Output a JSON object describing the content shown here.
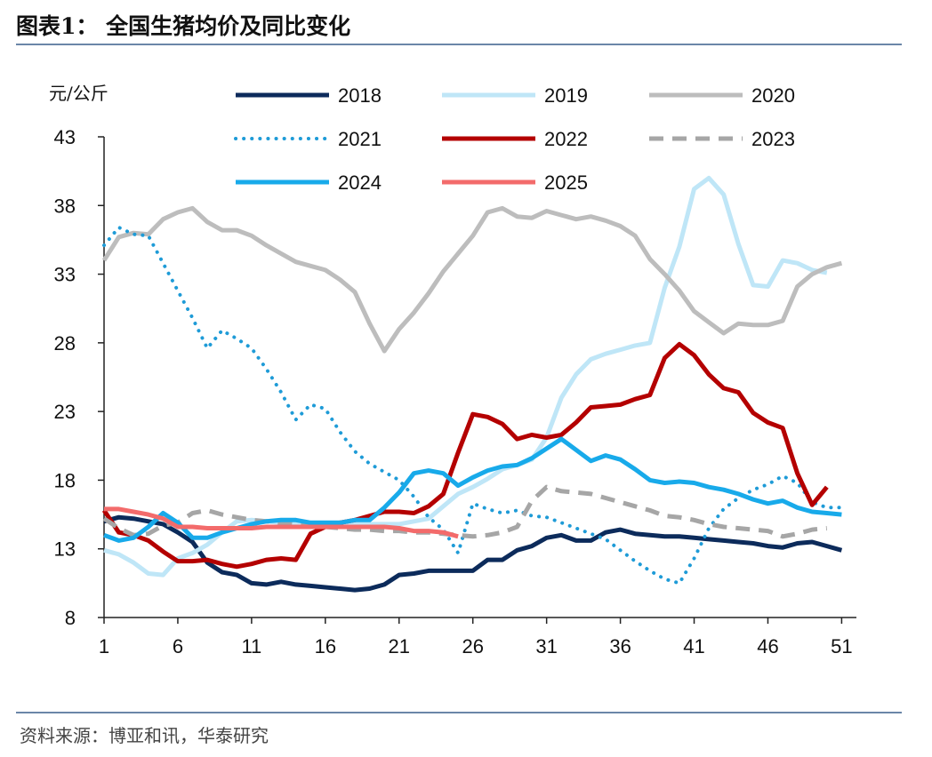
{
  "header": {
    "title": "图表1： 全国生猪均价及同比变化",
    "source": "资料来源：博亚和讯，华泰研究"
  },
  "chart_data": {
    "type": "line",
    "ylabel": "元/公斤",
    "ylim": [
      8,
      43
    ],
    "yticks": [
      8,
      13,
      18,
      23,
      28,
      33,
      38,
      43
    ],
    "xlim": [
      1,
      52
    ],
    "xticks": [
      1,
      6,
      11,
      16,
      21,
      26,
      31,
      36,
      41,
      46,
      51
    ],
    "legend": "top",
    "series": [
      {
        "name": "2018",
        "color": "#0c2b5b",
        "style": "solid",
        "width": 5,
        "x": [
          1,
          2,
          3,
          4,
          5,
          6,
          7,
          8,
          9,
          10,
          11,
          12,
          13,
          14,
          15,
          16,
          17,
          18,
          19,
          20,
          21,
          22,
          23,
          24,
          25,
          26,
          27,
          28,
          29,
          30,
          31,
          32,
          33,
          34,
          35,
          36,
          37,
          38,
          39,
          40,
          41,
          42,
          43,
          44,
          45,
          46,
          47,
          48,
          49,
          50,
          51
        ],
        "y": [
          15.0,
          15.3,
          15.2,
          15.0,
          14.8,
          14.2,
          13.5,
          12.0,
          11.3,
          11.1,
          10.5,
          10.4,
          10.6,
          10.4,
          10.3,
          10.2,
          10.1,
          10.0,
          10.1,
          10.4,
          11.1,
          11.2,
          11.4,
          11.4,
          11.4,
          11.4,
          12.2,
          12.2,
          12.9,
          13.2,
          13.8,
          14.0,
          13.6,
          13.6,
          14.2,
          14.4,
          14.1,
          14.0,
          13.9,
          13.9,
          13.8,
          13.7,
          13.6,
          13.5,
          13.4,
          13.2,
          13.1,
          13.4,
          13.5,
          13.2,
          12.9
        ]
      },
      {
        "name": "2019",
        "color": "#bfe6f7",
        "style": "solid",
        "width": 5,
        "x": [
          1,
          2,
          3,
          4,
          5,
          6,
          7,
          8,
          9,
          10,
          11,
          12,
          13,
          14,
          15,
          16,
          17,
          18,
          19,
          20,
          21,
          22,
          23,
          24,
          25,
          26,
          27,
          28,
          29,
          30,
          31,
          32,
          33,
          34,
          35,
          36,
          37,
          38,
          39,
          40,
          41,
          42,
          43,
          44,
          45,
          46,
          47,
          48,
          49,
          50
        ],
        "y": [
          12.9,
          12.6,
          12.0,
          11.2,
          11.1,
          12.3,
          12.7,
          13.3,
          14.2,
          15.0,
          15.1,
          15.0,
          14.9,
          14.8,
          14.8,
          14.8,
          14.8,
          14.8,
          14.8,
          14.8,
          14.8,
          15.0,
          15.2,
          16.1,
          17.0,
          17.5,
          18.1,
          18.8,
          19.1,
          19.5,
          21.1,
          24.0,
          25.7,
          26.8,
          27.2,
          27.5,
          27.8,
          28.0,
          32.0,
          35.0,
          39.2,
          40.0,
          38.8,
          35.2,
          32.2,
          32.1,
          34.0,
          33.8,
          33.3,
          33.1
        ]
      },
      {
        "name": "2020",
        "color": "#bdbdbd",
        "style": "solid",
        "width": 5,
        "x": [
          1,
          2,
          3,
          4,
          5,
          6,
          7,
          8,
          9,
          10,
          11,
          12,
          13,
          14,
          15,
          16,
          17,
          18,
          19,
          20,
          21,
          22,
          23,
          24,
          25,
          26,
          27,
          28,
          29,
          30,
          31,
          32,
          33,
          34,
          35,
          36,
          37,
          38,
          39,
          40,
          41,
          42,
          43,
          44,
          45,
          46,
          47,
          48,
          49,
          50,
          51
        ],
        "y": [
          34.0,
          35.7,
          36.0,
          35.9,
          37.0,
          37.5,
          37.8,
          36.8,
          36.2,
          36.2,
          35.8,
          35.1,
          34.5,
          33.9,
          33.6,
          33.3,
          32.6,
          31.7,
          29.4,
          27.4,
          29.0,
          30.2,
          31.6,
          33.2,
          34.5,
          35.8,
          37.5,
          37.8,
          37.2,
          37.1,
          37.6,
          37.3,
          37.0,
          37.2,
          36.9,
          36.5,
          35.8,
          34.1,
          33.0,
          31.8,
          30.3,
          29.5,
          28.7,
          29.4,
          29.3,
          29.3,
          29.6,
          32.1,
          33.0,
          33.5,
          33.8
        ]
      },
      {
        "name": "2021",
        "color": "#1e9bd7",
        "style": "dotted",
        "width": 4,
        "x": [
          1,
          2,
          3,
          4,
          5,
          6,
          7,
          8,
          9,
          10,
          11,
          12,
          13,
          14,
          15,
          16,
          17,
          18,
          19,
          20,
          21,
          22,
          23,
          24,
          25,
          26,
          27,
          28,
          29,
          30,
          31,
          32,
          33,
          34,
          35,
          36,
          37,
          38,
          39,
          40,
          41,
          42,
          43,
          44,
          45,
          46,
          47,
          48,
          49,
          50,
          51
        ],
        "y": [
          35.1,
          36.4,
          35.9,
          35.8,
          33.8,
          31.8,
          29.8,
          27.6,
          28.9,
          28.3,
          27.6,
          26.1,
          24.4,
          22.4,
          23.5,
          23.2,
          21.5,
          20.1,
          19.2,
          18.6,
          18.0,
          16.8,
          15.3,
          14.4,
          12.7,
          16.3,
          15.9,
          15.6,
          15.8,
          15.4,
          15.3,
          14.9,
          14.5,
          14.1,
          13.7,
          12.9,
          12.1,
          11.4,
          10.8,
          10.5,
          12.3,
          14.5,
          15.9,
          16.7,
          17.3,
          17.7,
          18.3,
          17.8,
          16.4,
          16.0,
          16.0
        ]
      },
      {
        "name": "2022",
        "color": "#b40000",
        "style": "solid",
        "width": 5,
        "x": [
          1,
          2,
          3,
          4,
          5,
          6,
          7,
          8,
          9,
          10,
          11,
          12,
          13,
          14,
          15,
          16,
          17,
          18,
          19,
          20,
          21,
          22,
          23,
          24,
          25,
          26,
          27,
          28,
          29,
          30,
          31,
          32,
          33,
          34,
          35,
          36,
          37,
          38,
          39,
          40,
          41,
          42,
          43,
          44,
          45,
          46,
          47,
          48,
          49,
          50
        ],
        "y": [
          15.8,
          14.2,
          14.0,
          13.6,
          12.8,
          12.1,
          12.1,
          12.2,
          11.9,
          11.7,
          11.9,
          12.2,
          12.3,
          12.2,
          14.1,
          14.6,
          14.9,
          15.1,
          15.4,
          15.7,
          15.7,
          15.6,
          16.1,
          17.0,
          20.0,
          22.8,
          22.6,
          22.1,
          21.0,
          21.3,
          21.1,
          21.3,
          22.2,
          23.3,
          23.4,
          23.5,
          23.9,
          24.2,
          26.9,
          27.9,
          27.1,
          25.7,
          24.7,
          24.4,
          22.9,
          22.2,
          21.8,
          18.5,
          16.2,
          17.5
        ]
      },
      {
        "name": "2023",
        "color": "#a6a6a6",
        "style": "dashed",
        "width": 5,
        "x": [
          1,
          2,
          3,
          4,
          5,
          6,
          7,
          8,
          9,
          10,
          11,
          12,
          13,
          14,
          15,
          16,
          17,
          18,
          19,
          20,
          21,
          22,
          23,
          24,
          25,
          26,
          27,
          28,
          29,
          30,
          31,
          32,
          33,
          34,
          35,
          36,
          37,
          38,
          39,
          40,
          41,
          42,
          43,
          44,
          45,
          46,
          47,
          48,
          49,
          50
        ],
        "y": [
          15.2,
          14.5,
          14.0,
          14.1,
          14.7,
          14.9,
          15.6,
          15.8,
          15.5,
          15.3,
          15.1,
          15.0,
          14.9,
          14.8,
          14.7,
          14.6,
          14.5,
          14.4,
          14.4,
          14.3,
          14.3,
          14.2,
          14.2,
          14.1,
          14.0,
          13.9,
          14.0,
          14.2,
          14.6,
          16.5,
          17.5,
          17.2,
          17.1,
          17.0,
          16.7,
          16.4,
          16.1,
          15.8,
          15.4,
          15.3,
          15.1,
          14.8,
          14.6,
          14.5,
          14.4,
          14.3,
          13.9,
          14.1,
          14.4,
          14.5
        ]
      },
      {
        "name": "2024",
        "color": "#18aaea",
        "style": "solid",
        "width": 5,
        "x": [
          1,
          2,
          3,
          4,
          5,
          6,
          7,
          8,
          9,
          10,
          11,
          12,
          13,
          14,
          15,
          16,
          17,
          18,
          19,
          20,
          21,
          22,
          23,
          24,
          25,
          26,
          27,
          28,
          29,
          30,
          31,
          32,
          33,
          34,
          35,
          36,
          37,
          38,
          39,
          40,
          41,
          42,
          43,
          44,
          45,
          46,
          47,
          48,
          49,
          50,
          51
        ],
        "y": [
          14.0,
          13.6,
          13.8,
          14.6,
          15.6,
          14.9,
          13.8,
          13.8,
          14.2,
          14.5,
          14.8,
          15.0,
          15.1,
          15.1,
          14.9,
          14.9,
          14.9,
          15.1,
          15.1,
          16.0,
          17.1,
          18.5,
          18.7,
          18.5,
          17.6,
          18.2,
          18.7,
          19.0,
          19.1,
          19.6,
          20.3,
          21.0,
          20.2,
          19.4,
          19.8,
          19.5,
          18.8,
          18.0,
          17.8,
          17.9,
          17.8,
          17.5,
          17.3,
          17.0,
          16.6,
          16.3,
          16.5,
          16.0,
          15.7,
          15.6,
          15.5
        ]
      },
      {
        "name": "2025",
        "color": "#f36b6b",
        "style": "solid",
        "width": 5,
        "x": [
          1,
          2,
          3,
          4,
          5,
          6,
          7,
          8,
          9,
          10,
          11,
          12,
          13,
          14,
          15,
          16,
          17,
          18,
          19,
          20,
          21,
          22,
          23,
          24,
          25
        ],
        "y": [
          15.9,
          15.9,
          15.7,
          15.5,
          15.2,
          14.6,
          14.6,
          14.5,
          14.5,
          14.5,
          14.5,
          14.6,
          14.6,
          14.6,
          14.6,
          14.6,
          14.6,
          14.6,
          14.6,
          14.6,
          14.5,
          14.3,
          14.3,
          14.2,
          13.9
        ]
      }
    ]
  }
}
